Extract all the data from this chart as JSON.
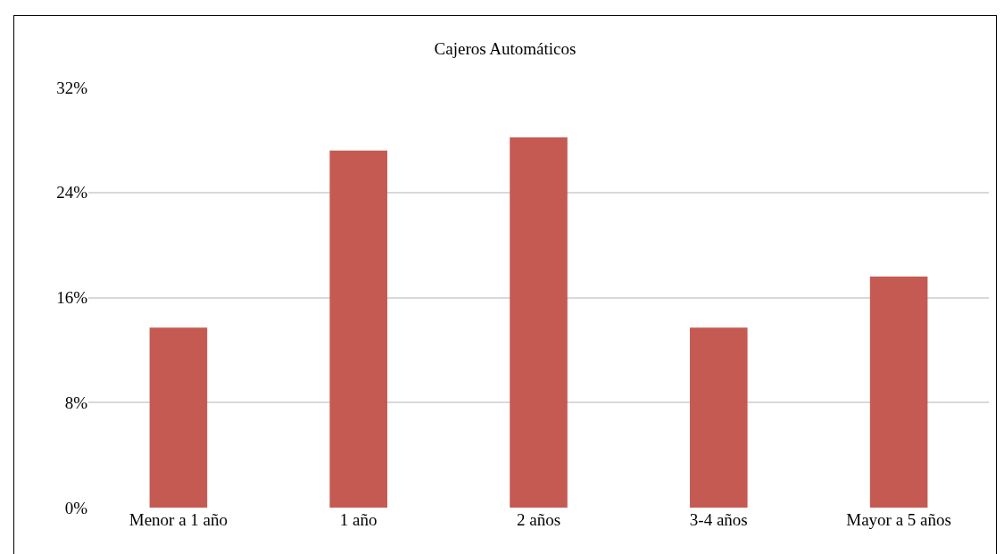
{
  "chart_data": {
    "type": "bar",
    "title": "Cajeros Automáticos",
    "categories": [
      "Menor a 1 año",
      "1 año",
      "2 años",
      "3-4 años",
      "Mayor a 5 años"
    ],
    "values": [
      13.7,
      27.2,
      28.2,
      13.7,
      17.6
    ],
    "color": "#c55a53",
    "ylim": [
      0,
      32
    ],
    "yticks": [
      {
        "value": 0,
        "label": "0%"
      },
      {
        "value": 8,
        "label": "8%"
      },
      {
        "value": 16,
        "label": "16%"
      },
      {
        "value": 24,
        "label": "24%"
      },
      {
        "value": 32,
        "label": "32%"
      }
    ],
    "grid": "y"
  }
}
